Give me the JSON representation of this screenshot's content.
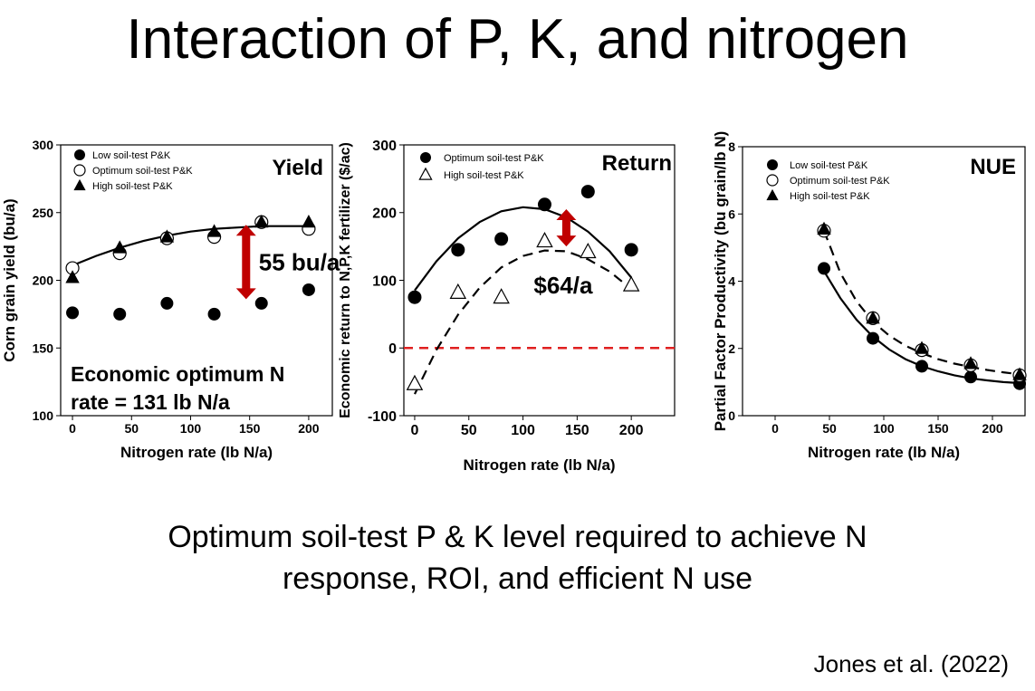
{
  "slide": {
    "title": "Interaction of P, K, and nitrogen",
    "footer_line1": "Optimum soil-test P & K level required to achieve N",
    "footer_line2": "response, ROI, and efficient N use",
    "citation": "Jones et al. (2022)"
  },
  "chart_data": [
    {
      "type": "scatter",
      "panel_label": "Yield",
      "xlabel": "Nitrogen rate (lb N/a)",
      "ylabel": "Corn grain yield (bu/a)",
      "xlim": [
        -10,
        220
      ],
      "ylim": [
        100,
        300
      ],
      "xticks": [
        0,
        50,
        100,
        150,
        200
      ],
      "yticks": [
        100,
        150,
        200,
        250,
        300
      ],
      "grid": false,
      "legend_position": "top-left",
      "series": [
        {
          "name": "Low soil-test P&K",
          "marker": "circle-filled",
          "x": [
            0,
            40,
            80,
            120,
            160,
            200
          ],
          "y": [
            176,
            175,
            183,
            175,
            183,
            193
          ]
        },
        {
          "name": "Optimum soil-test P&K",
          "marker": "circle-open",
          "x": [
            0,
            40,
            80,
            120,
            160,
            200
          ],
          "y": [
            209,
            220,
            231,
            232,
            243,
            238
          ],
          "fit": {
            "style": "solid",
            "x": [
              0,
              20,
              40,
              60,
              80,
              100,
              120,
              140,
              160,
              180,
              200
            ],
            "y": [
              211,
              218,
              224,
              229,
              233,
              236,
              238,
              239,
              240,
              240,
              240
            ]
          }
        },
        {
          "name": "High soil-test P&K",
          "marker": "triangle-filled",
          "x": [
            0,
            40,
            80,
            120,
            160,
            200
          ],
          "y": [
            202,
            224,
            232,
            236,
            243,
            243
          ]
        }
      ],
      "annotations": [
        {
          "text": "55 bu/a",
          "type": "double-arrow",
          "x": 147,
          "y_from": 186,
          "y_to": 241
        },
        {
          "text": "Economic optimum N",
          "position": "bottom-left"
        },
        {
          "text": "rate = 131 lb N/a",
          "position": "bottom-left"
        }
      ]
    },
    {
      "type": "scatter",
      "panel_label": "Return",
      "xlabel": "Nitrogen rate (lb N/a)",
      "ylabel": "Economic return to N,P,K fertilizer ($/ac)",
      "xlim": [
        -10,
        240
      ],
      "ylim": [
        -100,
        300
      ],
      "xticks": [
        0,
        50,
        100,
        150,
        200
      ],
      "yticks": [
        -100,
        0,
        100,
        200,
        300
      ],
      "grid": false,
      "legend_position": "top-left",
      "reference_line": {
        "y": 0,
        "style": "dashed",
        "color": "#e02020"
      },
      "series": [
        {
          "name": "Optimum soil-test P&K",
          "marker": "circle-filled",
          "x": [
            0,
            40,
            80,
            120,
            160,
            200
          ],
          "y": [
            75,
            145,
            161,
            212,
            231,
            145
          ],
          "fit": {
            "style": "solid",
            "x": [
              0,
              20,
              40,
              60,
              80,
              100,
              120,
              140,
              160,
              180,
              200
            ],
            "y": [
              85,
              128,
              162,
              186,
              202,
              208,
              205,
              193,
              172,
              143,
              104
            ]
          }
        },
        {
          "name": "High soil-test P&K",
          "marker": "triangle-open",
          "x": [
            0,
            40,
            80,
            120,
            160,
            200
          ],
          "y": [
            -53,
            82,
            75,
            158,
            142,
            93
          ],
          "fit": {
            "style": "dashed",
            "x": [
              0,
              20,
              40,
              60,
              80,
              100,
              120,
              140,
              160,
              180,
              200
            ],
            "y": [
              -68,
              -3,
              49,
              89,
              119,
              136,
              144,
              143,
              131,
              113,
              87
            ]
          }
        }
      ],
      "annotations": [
        {
          "text": "$64/a",
          "type": "double-arrow",
          "x": 140,
          "y_from": 150,
          "y_to": 205
        }
      ]
    },
    {
      "type": "scatter",
      "panel_label": "NUE",
      "xlabel": "Nitrogen rate (lb N/a)",
      "ylabel": "Partial Factor Productivity (bu grain/lb N)",
      "xlim": [
        -30,
        230
      ],
      "ylim": [
        0,
        8
      ],
      "xticks": [
        0,
        50,
        100,
        150,
        200
      ],
      "yticks": [
        0,
        2,
        4,
        6,
        8
      ],
      "grid": false,
      "legend_position": "top-left",
      "series": [
        {
          "name": "Low soil-test P&K",
          "marker": "circle-filled",
          "x": [
            45,
            90,
            135,
            180,
            225
          ],
          "y": [
            4.38,
            2.3,
            1.47,
            1.15,
            0.95
          ],
          "fit": {
            "style": "solid",
            "x": [
              45,
              60,
              75,
              90,
              105,
              120,
              135,
              150,
              165,
              180,
              195,
              210,
              225
            ],
            "y": [
              4.3,
              3.5,
              2.85,
              2.35,
              1.97,
              1.68,
              1.47,
              1.32,
              1.2,
              1.11,
              1.05,
              1.0,
              0.97
            ]
          }
        },
        {
          "name": "Optimum soil-test P&K",
          "marker": "circle-open",
          "x": [
            45,
            90,
            135,
            180,
            225
          ],
          "y": [
            5.5,
            2.9,
            1.95,
            1.5,
            1.2
          ]
        },
        {
          "name": "High soil-test P&K",
          "marker": "triangle-filled",
          "x": [
            45,
            90,
            135,
            180,
            225
          ],
          "y": [
            5.55,
            2.9,
            2.0,
            1.55,
            1.22
          ],
          "fit": {
            "style": "dashed",
            "x": [
              45,
              60,
              75,
              90,
              105,
              120,
              135,
              150,
              165,
              180,
              195,
              210,
              225
            ],
            "y": [
              5.5,
              4.25,
              3.4,
              2.8,
              2.38,
              2.08,
              1.86,
              1.68,
              1.55,
              1.45,
              1.36,
              1.29,
              1.23
            ]
          }
        }
      ],
      "annotations": []
    }
  ]
}
